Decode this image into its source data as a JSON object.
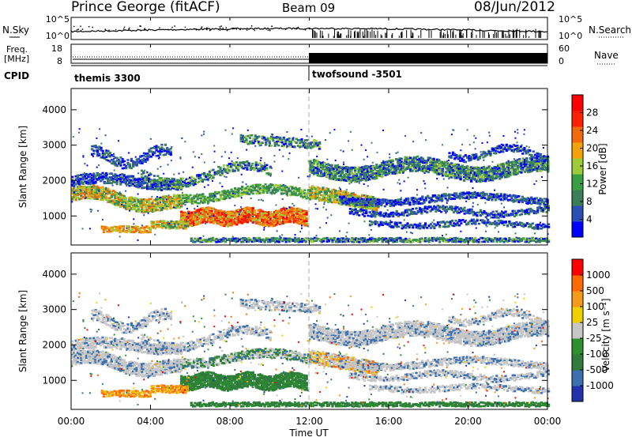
{
  "header": {
    "station": "Prince George (fitACF)",
    "beam": "Beam 09",
    "date": "08/Jun/2012"
  },
  "noise_panel": {
    "left_label": "N.Sky",
    "right_label": "N.Search",
    "left_ticks": [
      "10^5",
      "10^0"
    ],
    "right_ticks": [
      "10^5",
      "10^0"
    ]
  },
  "freq_panel": {
    "left_label_line1": "Freq.",
    "left_label_line2": "[MHz]",
    "right_label": "Nave",
    "left_ticks": [
      "18",
      "8"
    ],
    "right_ticks": [
      "60",
      "0"
    ]
  },
  "cpid": {
    "label": "CPID",
    "modes": [
      {
        "name": "themis 3300",
        "start_hour": 0,
        "end_hour": 12
      },
      {
        "name": "twofsound -3501",
        "start_hour": 12,
        "end_hour": 24
      }
    ]
  },
  "x_axis": {
    "label": "Time UT",
    "ticks": [
      "00:00",
      "04:00",
      "08:00",
      "12:00",
      "16:00",
      "20:00",
      "00:00"
    ]
  },
  "colors": {
    "power": [
      "#0000ff",
      "#2a4fb5",
      "#3a7f5a",
      "#38a043",
      "#9ecb3a",
      "#f5a20a",
      "#f26a0e",
      "#ff2200",
      "#ff0000"
    ],
    "velocity": [
      "#2233aa",
      "#3a6fb0",
      "#2e7b3c",
      "#2d8f2d",
      "#c6c6c6",
      "#f0d000",
      "#f59a1a",
      "#ff6a00",
      "#ff0000"
    ]
  },
  "chart_data": [
    {
      "type": "heatmap",
      "title": "",
      "xlabel": "Time UT",
      "ylabel": "Slant Range [km]",
      "xlim": [
        0,
        24
      ],
      "ylim": [
        180,
        4600
      ],
      "yticks": [
        "1000",
        "2000",
        "3000",
        "4000"
      ],
      "colorbar_label": "Power [dB]",
      "colorbar_ticks": [
        "4",
        "8",
        "12",
        "16",
        "20",
        "24",
        "28"
      ],
      "colorbar_range": [
        0,
        30
      ]
    },
    {
      "type": "heatmap",
      "title": "",
      "xlabel": "Time UT",
      "ylabel": "Slant Range [km]",
      "xlim": [
        0,
        24
      ],
      "ylim": [
        180,
        4600
      ],
      "yticks": [
        "1000",
        "2000",
        "3000",
        "4000"
      ],
      "colorbar_label": "Velocity [m s⁻¹]",
      "colorbar_ticks": [
        "1000",
        "500",
        "100",
        "25",
        "-25",
        "-100",
        "-500",
        "-1000"
      ]
    }
  ]
}
